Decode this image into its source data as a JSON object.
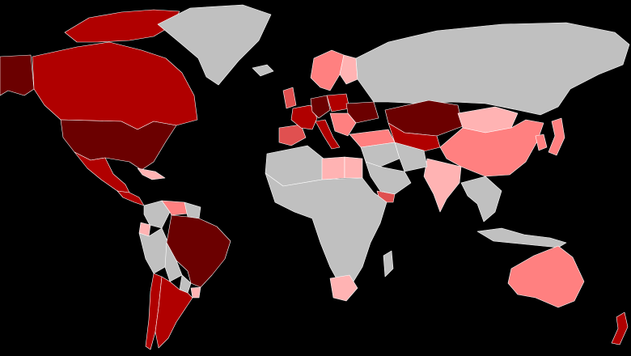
{
  "map": {
    "background": "#000000",
    "palette": {
      "no_data": "#c0c0c0",
      "level_1": "#ffb3b3",
      "level_2": "#ff8080",
      "level_3": "#e05050",
      "level_4": "#b00000",
      "level_5": "#6b0000"
    },
    "regions": [
      {
        "name": "alaska",
        "level": "level_5"
      },
      {
        "name": "canada",
        "level": "level_4"
      },
      {
        "name": "canadian-arctic-islands",
        "level": "level_4"
      },
      {
        "name": "greenland",
        "level": "no_data"
      },
      {
        "name": "iceland",
        "level": "no_data"
      },
      {
        "name": "united-states",
        "level": "level_5"
      },
      {
        "name": "mexico",
        "level": "level_4"
      },
      {
        "name": "central-america",
        "level": "level_4"
      },
      {
        "name": "caribbean",
        "level": "level_1"
      },
      {
        "name": "colombia",
        "level": "no_data"
      },
      {
        "name": "venezuela",
        "level": "level_2"
      },
      {
        "name": "guianas",
        "level": "no_data"
      },
      {
        "name": "ecuador",
        "level": "level_1"
      },
      {
        "name": "peru",
        "level": "no_data"
      },
      {
        "name": "brazil",
        "level": "level_5"
      },
      {
        "name": "bolivia",
        "level": "no_data"
      },
      {
        "name": "paraguay",
        "level": "no_data"
      },
      {
        "name": "uruguay",
        "level": "level_1"
      },
      {
        "name": "chile",
        "level": "level_4"
      },
      {
        "name": "argentina",
        "level": "level_4"
      },
      {
        "name": "uk",
        "level": "level_3"
      },
      {
        "name": "scandinavia",
        "level": "level_2"
      },
      {
        "name": "finland",
        "level": "level_1"
      },
      {
        "name": "iberia",
        "level": "level_3"
      },
      {
        "name": "france",
        "level": "level_4"
      },
      {
        "name": "germany",
        "level": "level_5"
      },
      {
        "name": "italy",
        "level": "level_4"
      },
      {
        "name": "poland",
        "level": "level_4"
      },
      {
        "name": "ukraine",
        "level": "level_5"
      },
      {
        "name": "balkans",
        "level": "level_2"
      },
      {
        "name": "turkey",
        "level": "level_2"
      },
      {
        "name": "russia",
        "level": "no_data"
      },
      {
        "name": "kazakhstan",
        "level": "level_5"
      },
      {
        "name": "central-asia",
        "level": "level_4"
      },
      {
        "name": "mongolia",
        "level": "level_1"
      },
      {
        "name": "china",
        "level": "level_2"
      },
      {
        "name": "korea",
        "level": "level_2"
      },
      {
        "name": "japan",
        "level": "level_2"
      },
      {
        "name": "india",
        "level": "level_1"
      },
      {
        "name": "middle-east",
        "level": "no_data"
      },
      {
        "name": "arabian-peninsula",
        "level": "no_data"
      },
      {
        "name": "yemen",
        "level": "level_3"
      },
      {
        "name": "iran",
        "level": "no_data"
      },
      {
        "name": "north-africa",
        "level": "no_data"
      },
      {
        "name": "libya",
        "level": "level_1"
      },
      {
        "name": "egypt",
        "level": "level_1"
      },
      {
        "name": "sub-saharan-africa",
        "level": "no_data"
      },
      {
        "name": "south-africa",
        "level": "level_1"
      },
      {
        "name": "madagascar",
        "level": "no_data"
      },
      {
        "name": "southeast-asia",
        "level": "no_data"
      },
      {
        "name": "indonesia",
        "level": "no_data"
      },
      {
        "name": "australia",
        "level": "level_2"
      },
      {
        "name": "new-zealand",
        "level": "level_4"
      }
    ]
  }
}
